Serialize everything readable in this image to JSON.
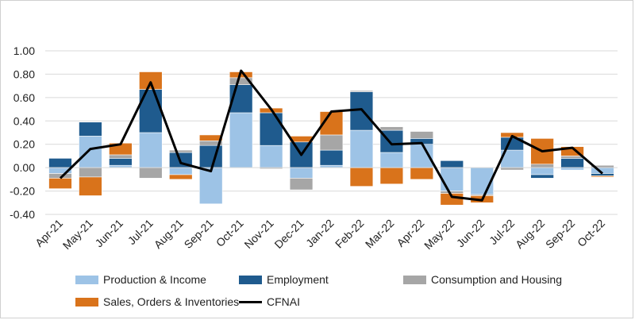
{
  "chart_data": {
    "type": "bar",
    "stacked": true,
    "title": "",
    "xlabel": "",
    "ylabel": "",
    "ylim": [
      -0.4,
      1.0
    ],
    "yticks": [
      "1.00",
      "0.80",
      "0.60",
      "0.40",
      "0.20",
      "0.00",
      "-0.20",
      "-0.40"
    ],
    "ytick_values": [
      1.0,
      0.8,
      0.6,
      0.4,
      0.2,
      0.0,
      -0.2,
      -0.4
    ],
    "grid": true,
    "legend_position": "bottom",
    "categories": [
      "Apr-21",
      "May-21",
      "Jun-21",
      "Jul-21",
      "Aug-21",
      "Sep-21",
      "Oct-21",
      "Nov-21",
      "Dec-21",
      "Jan-22",
      "Feb-22",
      "Mar-22",
      "Apr-22",
      "May-22",
      "Jun-22",
      "Jul-22",
      "Aug-22",
      "Sep-22",
      "Oct-22"
    ],
    "series": [
      {
        "name": "Production & Income",
        "kind": "bar",
        "color": "#9dc3e6",
        "values": [
          -0.05,
          0.27,
          0.02,
          0.3,
          -0.06,
          -0.31,
          0.47,
          0.19,
          -0.09,
          0.02,
          0.32,
          0.13,
          0.2,
          -0.2,
          -0.23,
          0.15,
          -0.06,
          -0.02,
          -0.05
        ]
      },
      {
        "name": "Employment",
        "kind": "bar",
        "color": "#1f5b8e",
        "values": [
          0.08,
          0.12,
          0.06,
          0.37,
          0.13,
          0.19,
          0.24,
          0.28,
          0.22,
          0.13,
          0.33,
          0.19,
          0.05,
          0.06,
          0.0,
          0.11,
          -0.03,
          0.08,
          -0.02
        ]
      },
      {
        "name": "Consumption and Housing",
        "kind": "bar",
        "color": "#a6a6a6",
        "values": [
          -0.04,
          -0.08,
          0.03,
          -0.09,
          0.02,
          0.04,
          0.06,
          -0.01,
          -0.1,
          0.13,
          0.01,
          0.03,
          0.06,
          -0.02,
          -0.01,
          -0.02,
          0.03,
          0.02,
          0.02
        ]
      },
      {
        "name": "Sales, Orders & Inventories",
        "kind": "bar",
        "color": "#d9731b",
        "values": [
          -0.09,
          -0.16,
          0.1,
          0.15,
          -0.04,
          0.05,
          0.05,
          0.04,
          0.05,
          0.2,
          -0.16,
          -0.14,
          -0.1,
          -0.1,
          -0.06,
          0.04,
          0.22,
          0.08,
          -0.01
        ]
      },
      {
        "name": "CFNAI",
        "kind": "line",
        "color": "#000000",
        "values": [
          -0.09,
          0.16,
          0.2,
          0.73,
          0.04,
          -0.03,
          0.83,
          0.5,
          0.11,
          0.48,
          0.5,
          0.2,
          0.21,
          -0.25,
          -0.28,
          0.27,
          0.14,
          0.17,
          -0.05
        ]
      }
    ]
  }
}
